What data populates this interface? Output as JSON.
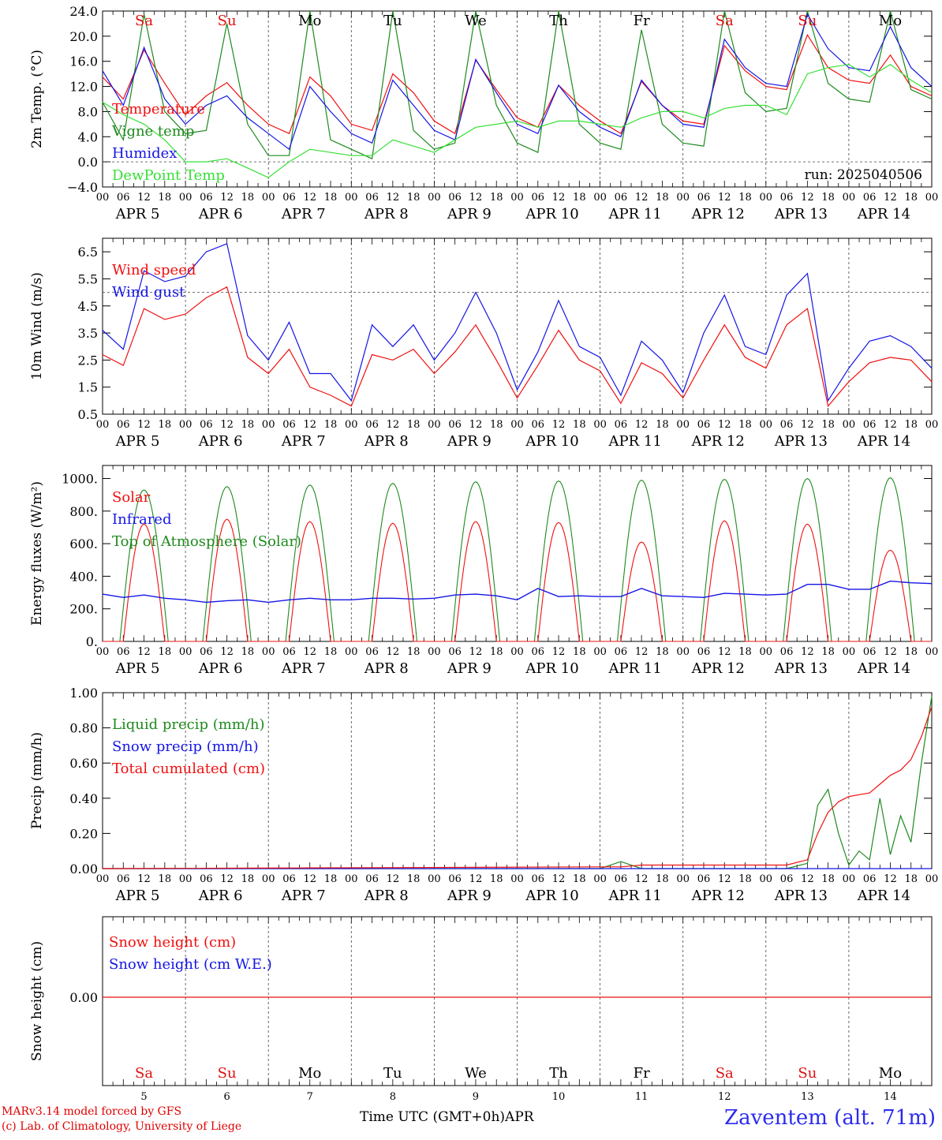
{
  "footer": {
    "model": "MARv3.14 model forced by GFS",
    "lab": "(c) Lab. of Climatology, University of Liege",
    "xlabel": "Time UTC (GMT+0h)",
    "month": "APR",
    "station": "Zaventem (alt. 71m)"
  },
  "colors": {
    "red": "#f01010",
    "green": "#1e8a1e",
    "blue": "#1515e6",
    "lightgreen": "#35e035",
    "weekend": "#e01010",
    "weekday": "#000000"
  },
  "days": {
    "weekday_labels": [
      "Sa",
      "Su",
      "Mo",
      "Tu",
      "We",
      "Th",
      "Fr",
      "Sa",
      "Su",
      "Mo"
    ],
    "weekend": [
      true,
      true,
      false,
      false,
      false,
      false,
      false,
      true,
      true,
      false
    ],
    "date_labels": [
      "APR  5",
      "APR  6",
      "APR  7",
      "APR  8",
      "APR  9",
      "APR 10",
      "APR 11",
      "APR 12",
      "APR 13",
      "APR 14"
    ],
    "day_numbers": [
      "5",
      "6",
      "7",
      "8",
      "9",
      "10",
      "11",
      "12",
      "13",
      "14"
    ],
    "hour_ticks": [
      "00",
      "06",
      "12",
      "18"
    ],
    "end_tick": "00"
  },
  "chart_data": [
    {
      "id": "temp",
      "type": "line",
      "ylabel": "2m Temp. (°C)",
      "yticks": [
        "24.0",
        "20.0",
        "16.0",
        "12.0",
        "8.0",
        "4.0",
        "0.0",
        "−4.0"
      ],
      "ylim": [
        -4,
        24
      ],
      "annotation": "run: 2025040506",
      "legend": [
        "Temperature",
        "Vigne temp",
        "Humidex",
        "DewPoint Temp"
      ],
      "x_hours": [
        0,
        6,
        12,
        18,
        24,
        30,
        36,
        42,
        48,
        54,
        60,
        66,
        72,
        78,
        84,
        90,
        96,
        102,
        108,
        114,
        120,
        126,
        132,
        138,
        144,
        150,
        156,
        162,
        168,
        174,
        180,
        186,
        192,
        198,
        204,
        210,
        216,
        222,
        228,
        234,
        240
      ],
      "series": [
        {
          "color": "red",
          "values": [
            13.5,
            10.0,
            17.8,
            12.5,
            7.5,
            10.5,
            12.6,
            9.0,
            6.0,
            4.5,
            13.5,
            10.5,
            6.0,
            5.0,
            14.0,
            11.0,
            6.5,
            4.5,
            16.2,
            11.5,
            7.0,
            5.5,
            12.2,
            9.0,
            6.5,
            4.5,
            12.8,
            9.0,
            6.5,
            6.0,
            18.5,
            14.5,
            12.0,
            11.5,
            20.2,
            15.0,
            13.0,
            12.5,
            17.0,
            12.0,
            10.5
          ]
        },
        {
          "color": "green",
          "values": [
            9.5,
            3.5,
            23.5,
            8.0,
            4.5,
            5.0,
            22.0,
            6.0,
            1.0,
            1.0,
            24.0,
            3.5,
            2.0,
            0.5,
            24.0,
            5.0,
            2.0,
            3.0,
            24.0,
            9.0,
            3.0,
            1.5,
            24.0,
            6.0,
            3.0,
            2.0,
            21.0,
            6.0,
            3.0,
            2.5,
            24.0,
            11.0,
            8.0,
            8.5,
            24.0,
            12.5,
            10.0,
            9.5,
            24.0,
            11.5,
            10.0
          ]
        },
        {
          "color": "blue",
          "values": [
            14.5,
            9.0,
            18.2,
            10.0,
            6.0,
            9.0,
            10.5,
            7.0,
            4.5,
            2.0,
            12.0,
            8.0,
            4.5,
            3.0,
            13.0,
            9.0,
            5.0,
            3.5,
            16.3,
            11.0,
            6.0,
            4.5,
            12.2,
            8.0,
            5.5,
            4.0,
            13.0,
            9.0,
            6.0,
            5.5,
            19.5,
            15.0,
            12.5,
            12.0,
            23.5,
            18.0,
            15.0,
            14.5,
            21.5,
            15.0,
            12.0
          ]
        },
        {
          "color": "lightgreen",
          "values": [
            9.5,
            7.5,
            6.0,
            3.5,
            0.0,
            0.0,
            0.5,
            -1.0,
            -2.5,
            0.0,
            2.0,
            1.5,
            1.0,
            1.0,
            3.5,
            2.5,
            1.5,
            3.5,
            5.5,
            6.0,
            6.5,
            5.5,
            6.5,
            6.5,
            6.0,
            5.5,
            7.0,
            8.0,
            8.0,
            7.0,
            8.5,
            9.0,
            9.0,
            7.5,
            14.0,
            15.0,
            15.5,
            13.5,
            15.5,
            13.0,
            11.0
          ]
        }
      ]
    },
    {
      "id": "wind",
      "type": "line",
      "ylabel": "10m Wind (m/s)",
      "yticks": [
        "6.5",
        "5.5",
        "4.5",
        "3.5",
        "2.5",
        "1.5",
        "0.5"
      ],
      "ylim": [
        0.5,
        7.0
      ],
      "legend": [
        "Wind speed",
        "Wind gust"
      ],
      "x_hours": [
        0,
        6,
        12,
        18,
        24,
        30,
        36,
        42,
        48,
        54,
        60,
        66,
        72,
        78,
        84,
        90,
        96,
        102,
        108,
        114,
        120,
        126,
        132,
        138,
        144,
        150,
        156,
        162,
        168,
        174,
        180,
        186,
        192,
        198,
        204,
        210,
        216,
        222,
        228,
        234,
        240
      ],
      "series": [
        {
          "color": "red",
          "values": [
            2.7,
            2.3,
            4.4,
            4.0,
            4.2,
            4.8,
            5.2,
            2.6,
            2.0,
            2.9,
            1.5,
            1.2,
            0.8,
            2.7,
            2.5,
            2.9,
            2.0,
            2.8,
            3.8,
            2.5,
            1.1,
            2.3,
            3.6,
            2.5,
            2.1,
            0.9,
            2.4,
            2.0,
            1.1,
            2.5,
            3.8,
            2.6,
            2.2,
            3.8,
            4.4,
            0.8,
            1.7,
            2.4,
            2.6,
            2.5,
            1.7
          ]
        },
        {
          "color": "blue",
          "values": [
            3.6,
            2.9,
            5.8,
            5.4,
            5.6,
            6.5,
            6.8,
            3.4,
            2.5,
            3.9,
            2.0,
            2.0,
            1.0,
            3.8,
            3.0,
            3.8,
            2.5,
            3.5,
            5.0,
            3.5,
            1.4,
            2.8,
            4.7,
            3.0,
            2.6,
            1.2,
            3.2,
            2.5,
            1.3,
            3.5,
            4.9,
            3.0,
            2.7,
            4.9,
            5.7,
            1.0,
            2.2,
            3.2,
            3.4,
            3.0,
            2.2
          ]
        }
      ]
    },
    {
      "id": "energy",
      "type": "line",
      "ylabel": "Energy fluxes (W/m²)",
      "yticks": [
        "1000.",
        "800.",
        "600.",
        "400.",
        "200.",
        "0."
      ],
      "ylim": [
        0,
        1080
      ],
      "legend": [
        "Solar",
        "Infrared",
        "Top of Atmosphere (Solar)"
      ],
      "solar_peaks": [
        720,
        750,
        735,
        725,
        735,
        730,
        610,
        740,
        720,
        560
      ],
      "toa_peaks": [
        930,
        950,
        960,
        970,
        980,
        985,
        990,
        995,
        1000,
        1005
      ],
      "infrared": {
        "x_hours": [
          0,
          6,
          12,
          18,
          24,
          30,
          36,
          42,
          48,
          54,
          60,
          66,
          72,
          78,
          84,
          90,
          96,
          102,
          108,
          114,
          120,
          126,
          132,
          138,
          144,
          150,
          156,
          162,
          168,
          174,
          180,
          186,
          192,
          198,
          204,
          210,
          216,
          222,
          228,
          234,
          240
        ],
        "values": [
          290,
          270,
          285,
          265,
          255,
          240,
          250,
          255,
          240,
          255,
          265,
          255,
          255,
          265,
          265,
          260,
          265,
          285,
          290,
          280,
          255,
          325,
          275,
          280,
          275,
          275,
          325,
          280,
          275,
          270,
          295,
          290,
          285,
          290,
          350,
          350,
          320,
          320,
          370,
          360,
          355
        ]
      }
    },
    {
      "id": "precip",
      "type": "line",
      "ylabel": "Precip (mm/h)",
      "yticks": [
        "1.00",
        "0.80",
        "0.60",
        "0.40",
        "0.20",
        "0.00"
      ],
      "ylim": [
        0,
        1.0
      ],
      "legend": [
        "Liquid precip (mm/h)",
        "Snow precip (mm/h)",
        "Total cumulated (cm)"
      ],
      "x_hours": [
        0,
        144,
        150,
        156,
        162,
        198,
        204,
        207,
        210,
        213,
        216,
        219,
        222,
        225,
        228,
        231,
        234,
        237,
        240
      ],
      "series": [
        {
          "color": "green",
          "values": [
            0,
            0,
            0.04,
            0,
            0,
            0,
            0.03,
            0.36,
            0.45,
            0.2,
            0.02,
            0.1,
            0.05,
            0.4,
            0.08,
            0.3,
            0.15,
            0.6,
            0.98
          ]
        },
        {
          "color": "blue",
          "values": [
            0,
            0,
            0,
            0,
            0,
            0,
            0,
            0,
            0,
            0,
            0,
            0,
            0,
            0,
            0,
            0,
            0,
            0,
            0
          ]
        },
        {
          "color": "red",
          "values": [
            0,
            0.01,
            0.01,
            0.02,
            0.02,
            0.02,
            0.05,
            0.2,
            0.32,
            0.38,
            0.41,
            0.42,
            0.43,
            0.48,
            0.53,
            0.56,
            0.62,
            0.75,
            0.92
          ]
        }
      ]
    },
    {
      "id": "snow",
      "type": "line",
      "ylabel": "Snow height (cm)",
      "yticks": [
        "0.00"
      ],
      "legend": [
        "Snow height (cm)",
        "Snow height (cm W.E.)"
      ],
      "series": [
        {
          "color": "red",
          "values": [
            0,
            0
          ]
        }
      ]
    }
  ]
}
